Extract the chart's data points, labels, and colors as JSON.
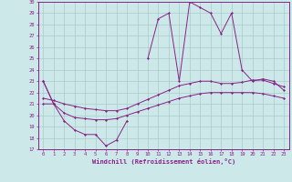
{
  "xlabel": "Windchill (Refroidissement éolien,°C)",
  "background_color": "#cce8e8",
  "grid_color": "#aacccc",
  "line_color": "#882288",
  "hours": [
    0,
    1,
    2,
    3,
    4,
    5,
    6,
    7,
    8,
    9,
    10,
    11,
    12,
    13,
    14,
    15,
    16,
    17,
    18,
    19,
    20,
    21,
    22,
    23
  ],
  "line_main": [
    23,
    21,
    null,
    null,
    null,
    null,
    null,
    null,
    null,
    null,
    25,
    28.5,
    29,
    23,
    30,
    29.5,
    29,
    27.2,
    29,
    24,
    23,
    23.2,
    23,
    22.2
  ],
  "line_lower": [
    23,
    21,
    19.5,
    18.7,
    18.3,
    18.3,
    17.3,
    17.8,
    19.5,
    null,
    null,
    null,
    null,
    null,
    null,
    null,
    null,
    null,
    null,
    null,
    null,
    null,
    null,
    null
  ],
  "line_flat1": [
    21.0,
    21.0,
    20.2,
    19.8,
    19.7,
    19.6,
    19.6,
    19.7,
    20.0,
    20.3,
    20.6,
    20.9,
    21.2,
    21.5,
    21.7,
    21.9,
    22.0,
    22.0,
    22.0,
    22.0,
    22.0,
    21.9,
    21.7,
    21.5
  ],
  "line_flat2": [
    21.5,
    21.3,
    21.0,
    20.8,
    20.6,
    20.5,
    20.4,
    20.4,
    20.6,
    21.0,
    21.4,
    21.8,
    22.2,
    22.6,
    22.8,
    23.0,
    23.0,
    22.8,
    22.8,
    22.9,
    23.1,
    23.1,
    22.8,
    22.5
  ],
  "ylim_min": 17,
  "ylim_max": 30,
  "yticks": [
    17,
    18,
    19,
    20,
    21,
    22,
    23,
    24,
    25,
    26,
    27,
    28,
    29,
    30
  ],
  "xticks": [
    0,
    1,
    2,
    3,
    4,
    5,
    6,
    7,
    8,
    9,
    10,
    11,
    12,
    13,
    14,
    15,
    16,
    17,
    18,
    19,
    20,
    21,
    22,
    23
  ]
}
